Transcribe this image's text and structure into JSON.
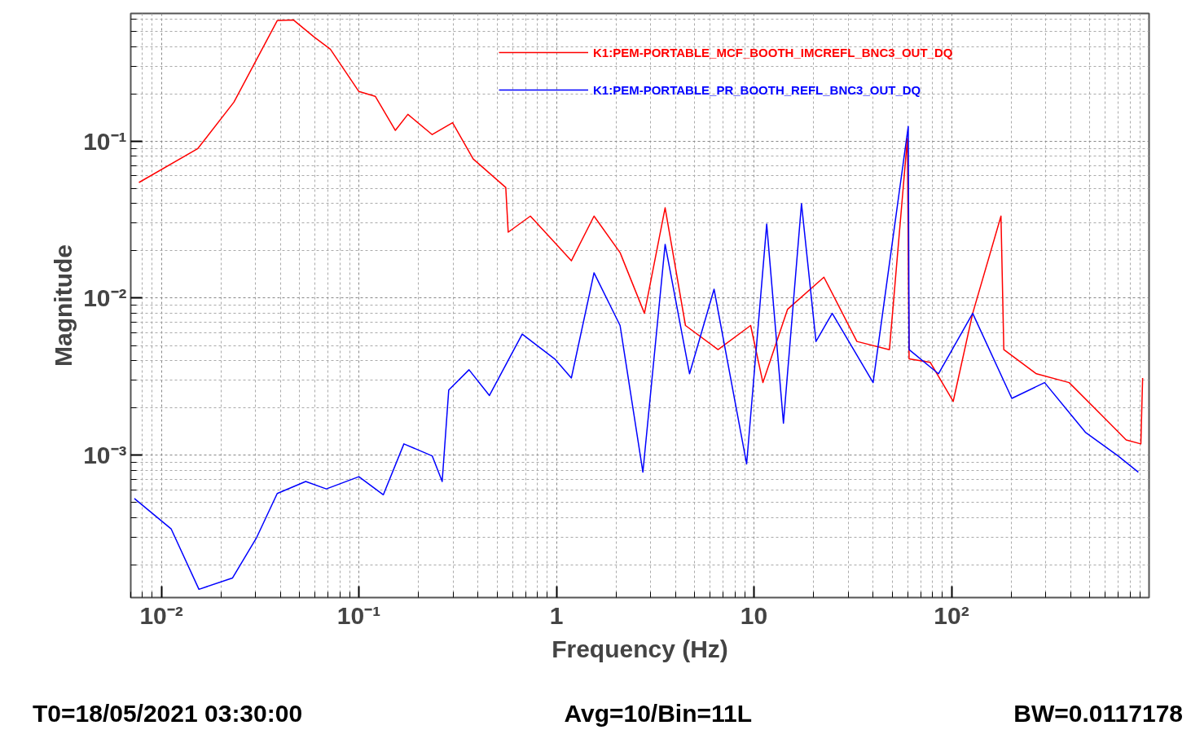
{
  "chart_data": {
    "type": "line",
    "xlabel": "Frequency (Hz)",
    "ylabel": "Magnitude",
    "log": "xy",
    "grid": true,
    "legend": "top right",
    "xlim": [
      0.007,
      1000
    ],
    "ylim": [
      0.000124,
      0.65
    ],
    "xticks": [
      {
        "value": 0.01,
        "label": "10⁻²"
      },
      {
        "value": 0.1,
        "label": "10⁻¹"
      },
      1,
      10,
      {
        "value": 100,
        "label": "10²"
      }
    ],
    "yticks": [
      {
        "value": 0.001,
        "label": "10⁻³"
      },
      {
        "value": 0.01,
        "label": "10⁻²"
      },
      {
        "value": 0.1,
        "label": "10⁻¹"
      }
    ],
    "series": [
      {
        "name": "K1:PEM-PORTABLE_MCF_BOOTH_IMCREFL_BNC3_OUT_DQ",
        "color": "#ff0000",
        "x": [
          0.0077,
          0.0153,
          0.0233,
          0.0386,
          0.0467,
          0.0593,
          0.0717,
          0.1,
          0.121,
          0.153,
          0.177,
          0.235,
          0.298,
          0.379,
          0.554,
          0.57,
          0.738,
          1.0,
          1.19,
          1.55,
          2.1,
          2.79,
          3.55,
          4.5,
          6.58,
          9.62,
          11.1,
          14.8,
          22.6,
          33.2,
          48.5,
          59.8,
          61,
          78.1,
          102,
          128,
          178,
          184,
          269,
          394,
          575,
          766,
          909,
          928
        ],
        "values": [
          0.0545,
          0.0897,
          0.177,
          0.585,
          0.59,
          0.46,
          0.385,
          0.207,
          0.193,
          0.117,
          0.148,
          0.11,
          0.131,
          0.077,
          0.0507,
          0.0263,
          0.0333,
          0.022,
          0.0173,
          0.0333,
          0.0195,
          0.008,
          0.0376,
          0.0067,
          0.0047,
          0.0067,
          0.0029,
          0.0085,
          0.0136,
          0.0053,
          0.0047,
          0.104,
          0.0041,
          0.0039,
          0.0022,
          0.008,
          0.0333,
          0.0047,
          0.0033,
          0.0029,
          0.0018,
          0.00125,
          0.00118,
          0.0031
        ]
      },
      {
        "name": "K1:PEM-PORTABLE_PR_BOOTH_REFL_BNC3_OUT_DQ",
        "color": "#0000ff",
        "x": [
          0.0073,
          0.0112,
          0.0155,
          0.0229,
          0.0304,
          0.0386,
          0.0538,
          0.0684,
          0.1,
          0.133,
          0.169,
          0.235,
          0.264,
          0.285,
          0.361,
          0.458,
          0.671,
          0.98,
          1.19,
          1.55,
          2.1,
          2.74,
          3.55,
          4.72,
          6.28,
          9.18,
          11.6,
          14.1,
          17.4,
          20.6,
          24.9,
          40.1,
          60.4,
          61,
          85.9,
          128,
          202,
          296,
          476,
          697,
          883
        ],
        "values": [
          0.00053,
          0.00034,
          0.00014,
          0.000165,
          0.0003,
          0.00057,
          0.00068,
          0.00061,
          0.00073,
          0.00056,
          0.00118,
          0.00099,
          0.00068,
          0.0026,
          0.0035,
          0.0024,
          0.0059,
          0.0041,
          0.0031,
          0.0145,
          0.0067,
          0.00078,
          0.022,
          0.0033,
          0.0114,
          0.00088,
          0.0296,
          0.0016,
          0.04,
          0.0053,
          0.008,
          0.0029,
          0.124,
          0.0047,
          0.0033,
          0.008,
          0.0023,
          0.0029,
          0.0014,
          0.00099,
          0.00078
        ]
      }
    ],
    "annotations": [
      "T0=18/05/2021 03:30:00",
      "Avg=10/Bin=11L",
      "BW=0.0117178"
    ]
  }
}
